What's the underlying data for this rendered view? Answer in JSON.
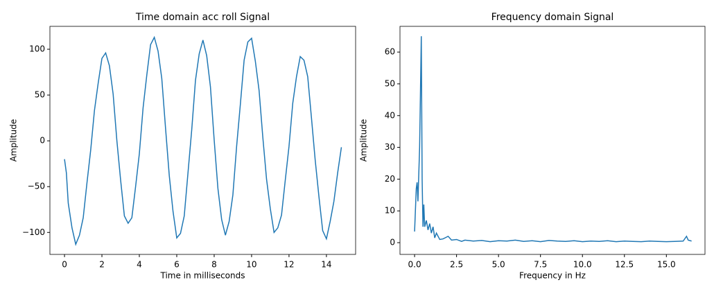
{
  "chart_data": [
    {
      "type": "line",
      "title": "Time domain acc roll Signal",
      "x_label": "Time in milliseconds",
      "y_label": "Amplitude",
      "xlim": [
        -0.78,
        15.56
      ],
      "ylim": [
        -124,
        125
      ],
      "xticks": [
        0,
        2,
        4,
        6,
        8,
        10,
        12,
        14
      ],
      "yticks": [
        {
          "value": -100,
          "label": "−100"
        },
        {
          "value": -50,
          "label": "−50"
        },
        0,
        50,
        100
      ],
      "series": [
        {
          "color": "#1f77b4",
          "x": [
            0,
            0.1,
            0.2,
            0.4,
            0.6,
            0.8,
            1.0,
            1.2,
            1.4,
            1.6,
            1.8,
            2.0,
            2.2,
            2.4,
            2.6,
            2.8,
            3.0,
            3.2,
            3.4,
            3.6,
            3.8,
            4.0,
            4.2,
            4.4,
            4.6,
            4.8,
            5.0,
            5.2,
            5.4,
            5.6,
            5.8,
            6.0,
            6.2,
            6.4,
            6.6,
            6.8,
            7.0,
            7.2,
            7.4,
            7.6,
            7.8,
            8.0,
            8.2,
            8.4,
            8.6,
            8.8,
            9.0,
            9.2,
            9.4,
            9.6,
            9.8,
            10.0,
            10.2,
            10.4,
            10.6,
            10.8,
            11.0,
            11.2,
            11.4,
            11.6,
            11.8,
            12.0,
            12.2,
            12.4,
            12.6,
            12.8,
            13.0,
            13.2,
            13.4,
            13.6,
            13.8,
            14.0,
            14.2,
            14.4,
            14.6,
            14.8
          ],
          "values": [
            -20,
            -35,
            -68,
            -95,
            -113,
            -103,
            -84,
            -46,
            -10,
            33,
            63,
            90,
            96,
            82,
            51,
            0,
            -43,
            -82,
            -90,
            -84,
            -50,
            -14,
            36,
            72,
            105,
            113,
            98,
            68,
            14,
            -38,
            -77,
            -106,
            -101,
            -82,
            -35,
            12,
            66,
            95,
            110,
            93,
            59,
            1,
            -52,
            -86,
            -103,
            -88,
            -59,
            -6,
            40,
            88,
            108,
            112,
            87,
            55,
            4,
            -42,
            -74,
            -100,
            -95,
            -81,
            -43,
            -6,
            41,
            70,
            92,
            88,
            70,
            25,
            -21,
            -61,
            -98,
            -107,
            -88,
            -66,
            -35,
            -7
          ]
        }
      ]
    },
    {
      "type": "line",
      "title": "Frequency domain Signal",
      "x_label": "Frequency in Hz",
      "y_label": "Amplitude",
      "xlim": [
        -0.87,
        17.3
      ],
      "ylim": [
        -3.7,
        68.1
      ],
      "xticks": [
        {
          "value": 0,
          "label": "0.0"
        },
        2.5,
        {
          "value": 5,
          "label": "5.0"
        },
        7.5,
        {
          "value": 10,
          "label": "10.0"
        },
        12.5,
        {
          "value": 15,
          "label": "15.0"
        }
      ],
      "yticks": [
        0,
        10,
        20,
        30,
        40,
        50,
        60
      ],
      "series": [
        {
          "color": "#1f77b4",
          "x": [
            0,
            0.1,
            0.15,
            0.2,
            0.3,
            0.4,
            0.45,
            0.5,
            0.55,
            0.6,
            0.7,
            0.8,
            0.9,
            1.0,
            1.1,
            1.2,
            1.3,
            1.5,
            1.7,
            2.0,
            2.2,
            2.5,
            2.8,
            3.0,
            3.5,
            4.0,
            4.5,
            5.0,
            5.5,
            6.0,
            6.5,
            7.0,
            7.5,
            8.0,
            8.5,
            9.0,
            9.5,
            10.0,
            10.5,
            11.0,
            11.5,
            12.0,
            12.5,
            13.0,
            13.5,
            14.0,
            14.5,
            15.0,
            15.5,
            16.0,
            16.2,
            16.3,
            16.5
          ],
          "values": [
            3.5,
            17,
            19,
            13,
            30,
            65,
            20,
            5,
            12,
            5,
            7,
            4,
            6,
            3,
            5,
            1.5,
            3,
            1,
            1.2,
            2,
            0.8,
            1,
            0.4,
            0.8,
            0.5,
            0.7,
            0.3,
            0.6,
            0.5,
            0.8,
            0.4,
            0.6,
            0.3,
            0.7,
            0.5,
            0.4,
            0.6,
            0.3,
            0.5,
            0.4,
            0.6,
            0.3,
            0.5,
            0.4,
            0.3,
            0.5,
            0.4,
            0.3,
            0.4,
            0.5,
            2,
            0.8,
            0.5
          ]
        }
      ]
    }
  ]
}
